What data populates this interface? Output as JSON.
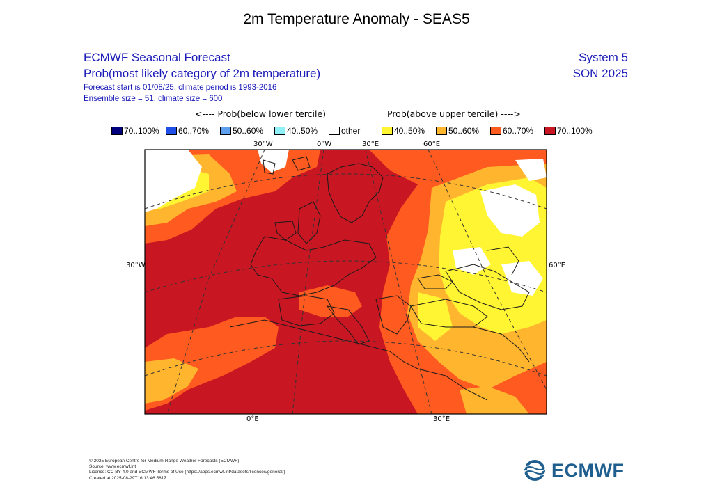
{
  "title": "2m Temperature Anomaly - SEAS5",
  "header": {
    "line1": "ECMWF Seasonal Forecast",
    "line2": "Prob(most likely category of 2m temperature)",
    "line3": "Forecast start is 01/08/25, climate period is 1993-2016",
    "line4": "Ensemble size = 51, climate size = 600",
    "system": "System 5",
    "season": "SON 2025"
  },
  "legend": {
    "below_label": "<---- Prob(below lower tercile)",
    "above_label": "Prob(above upper tercile) ---->",
    "items": [
      {
        "label": "70..100%",
        "color": "#00007f"
      },
      {
        "label": "60..70%",
        "color": "#1f4fe6"
      },
      {
        "label": "50..60%",
        "color": "#5e9ff0"
      },
      {
        "label": "40..50%",
        "color": "#8ff0f7"
      },
      {
        "label": "other",
        "color": "#ffffff"
      },
      {
        "label": "40..50%",
        "color": "#fff533"
      },
      {
        "label": "50..60%",
        "color": "#ffb52e"
      },
      {
        "label": "60..70%",
        "color": "#ff5a1f"
      },
      {
        "label": "70..100%",
        "color": "#c81722"
      }
    ]
  },
  "axes": {
    "top": [
      "30°W",
      "0°W",
      "30°E",
      "60°E"
    ],
    "left": "30°W",
    "right": "60°E",
    "bottom": [
      "0°E",
      "30°E"
    ]
  },
  "footer": {
    "line1": "© 2025 European Centre for Medium-Range Weather Forecasts (ECMWF)",
    "line2": "Source: www.ecmwf.int",
    "line3": "Licence: CC BY 4.0 and ECMWF Terms of Use (https://apps.ecmwf.int/datasets/licences/general/)",
    "line4": "Created at 2025-08-29T16:13:46.581Z"
  },
  "logo": {
    "text": "ECMWF"
  }
}
